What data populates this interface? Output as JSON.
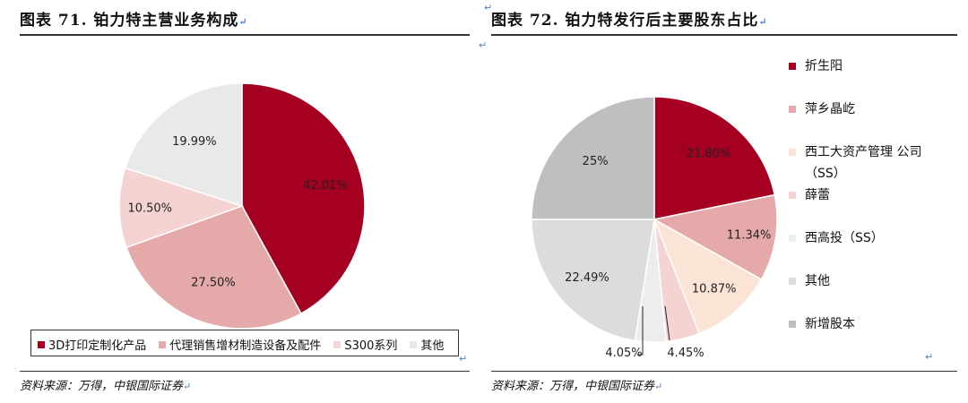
{
  "left": {
    "title": "图表 71. 铂力特主营业务构成",
    "source": "资料来源：万得，中银国际证券",
    "chart_data": {
      "type": "pie",
      "labels": [
        "3D打印定制化产品",
        "代理销售增材制造设备及配件",
        "S300系列",
        "其他"
      ],
      "values": [
        42.01,
        27.5,
        10.5,
        19.99
      ],
      "value_labels": [
        "42.01%",
        "27.50%",
        "10.50%",
        "19.99%"
      ],
      "colors": [
        "#a50021",
        "#e6a9a9",
        "#f6d3d3",
        "#e9e9e9"
      ],
      "legend_position": "bottom"
    }
  },
  "right": {
    "title": "图表 72. 铂力特发行后主要股东占比",
    "source": "资料来源：万得，中银国际证券",
    "chart_data": {
      "type": "pie",
      "labels": [
        "折生阳",
        "萍乡晶屹",
        "西工大资产管理 公司（SS）",
        "薛蕾",
        "西高投（SS）",
        "其他",
        "新增股本"
      ],
      "legend_lines": [
        [
          "折生阳"
        ],
        [
          "萍乡晶屹"
        ],
        [
          "西工大资产管理 公司",
          "（SS）"
        ],
        [
          "薛蕾"
        ],
        [
          "西高投（SS）"
        ],
        [
          "其他"
        ],
        [
          "新增股本"
        ]
      ],
      "values": [
        21.8,
        11.34,
        10.87,
        4.45,
        4.05,
        22.49,
        25
      ],
      "value_labels": [
        "21.80%",
        "11.34%",
        "10.87%",
        "4.45%",
        "4.05%",
        "22.49%",
        "25%"
      ],
      "colors": [
        "#a50021",
        "#e6a9a9",
        "#fbe4d5",
        "#f6d3d3",
        "#ededed",
        "#dcdcdc",
        "#bfbfbf"
      ],
      "legend_position": "right"
    }
  }
}
